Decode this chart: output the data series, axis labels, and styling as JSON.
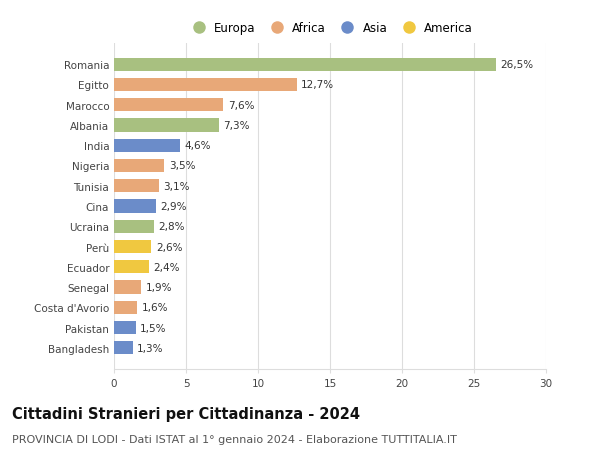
{
  "countries": [
    "Romania",
    "Egitto",
    "Marocco",
    "Albania",
    "India",
    "Nigeria",
    "Tunisia",
    "Cina",
    "Ucraina",
    "Perù",
    "Ecuador",
    "Senegal",
    "Costa d'Avorio",
    "Pakistan",
    "Bangladesh"
  ],
  "values": [
    26.5,
    12.7,
    7.6,
    7.3,
    4.6,
    3.5,
    3.1,
    2.9,
    2.8,
    2.6,
    2.4,
    1.9,
    1.6,
    1.5,
    1.3
  ],
  "labels": [
    "26,5%",
    "12,7%",
    "7,6%",
    "7,3%",
    "4,6%",
    "3,5%",
    "3,1%",
    "2,9%",
    "2,8%",
    "2,6%",
    "2,4%",
    "1,9%",
    "1,6%",
    "1,5%",
    "1,3%"
  ],
  "continents": [
    "Europa",
    "Africa",
    "Africa",
    "Europa",
    "Asia",
    "Africa",
    "Africa",
    "Asia",
    "Europa",
    "America",
    "America",
    "Africa",
    "Africa",
    "Asia",
    "Asia"
  ],
  "continent_colors": {
    "Europa": "#a8c080",
    "Africa": "#e8a878",
    "Asia": "#6b8cc9",
    "America": "#f0c840"
  },
  "legend_order": [
    "Europa",
    "Africa",
    "Asia",
    "America"
  ],
  "xlim": [
    0,
    30
  ],
  "xticks": [
    0,
    5,
    10,
    15,
    20,
    25,
    30
  ],
  "title": "Cittadini Stranieri per Cittadinanza - 2024",
  "subtitle": "PROVINCIA DI LODI - Dati ISTAT al 1° gennaio 2024 - Elaborazione TUTTITALIA.IT",
  "title_fontsize": 10.5,
  "subtitle_fontsize": 8,
  "label_fontsize": 7.5,
  "tick_fontsize": 7.5,
  "legend_fontsize": 8.5,
  "bar_height": 0.65,
  "background_color": "#ffffff",
  "grid_color": "#dddddd"
}
